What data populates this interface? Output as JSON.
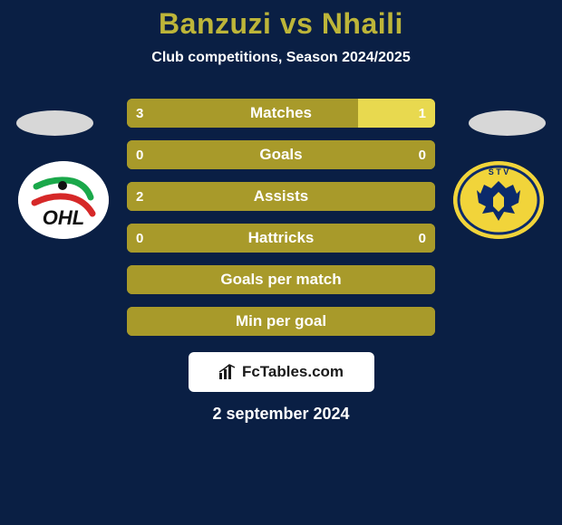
{
  "colors": {
    "background": "#0a1f44",
    "title": "#bdb539",
    "subtitle": "#ffffff",
    "bar_base": "#a89a2a",
    "bar_highlight": "#e8d94f",
    "bar_label_text": "#ffffff",
    "bar_value_text": "#ffffff",
    "side_oval": "#d7d7d7",
    "watermark_bg": "#ffffff",
    "watermark_text": "#1a1a1a",
    "date_text": "#ffffff",
    "club_left_bg": "#ffffff",
    "club_right_bg": "#f1d43a"
  },
  "header": {
    "title": "Banzuzi vs Nhaili",
    "subtitle": "Club competitions, Season 2024/2025"
  },
  "bars": [
    {
      "label": "Matches",
      "left_value": "3",
      "right_value": "1",
      "left_pct": 75,
      "right_pct": 25,
      "show_values": true
    },
    {
      "label": "Goals",
      "left_value": "0",
      "right_value": "0",
      "left_pct": 100,
      "right_pct": 0,
      "show_values": true
    },
    {
      "label": "Assists",
      "left_value": "2",
      "right_value": "",
      "left_pct": 100,
      "right_pct": 0,
      "show_values": true
    },
    {
      "label": "Hattricks",
      "left_value": "0",
      "right_value": "0",
      "left_pct": 100,
      "right_pct": 0,
      "show_values": true
    },
    {
      "label": "Goals per match",
      "left_value": "",
      "right_value": "",
      "left_pct": 100,
      "right_pct": 0,
      "show_values": false
    },
    {
      "label": "Min per goal",
      "left_value": "",
      "right_value": "",
      "left_pct": 100,
      "right_pct": 0,
      "show_values": false
    }
  ],
  "clubs": {
    "left": {
      "name": "OHL",
      "svg_bg": "#ffffff"
    },
    "right": {
      "name": "STVV",
      "svg_bg": "#f1d43a"
    }
  },
  "watermark": {
    "text": "FcTables.com"
  },
  "date": "2 september 2024"
}
